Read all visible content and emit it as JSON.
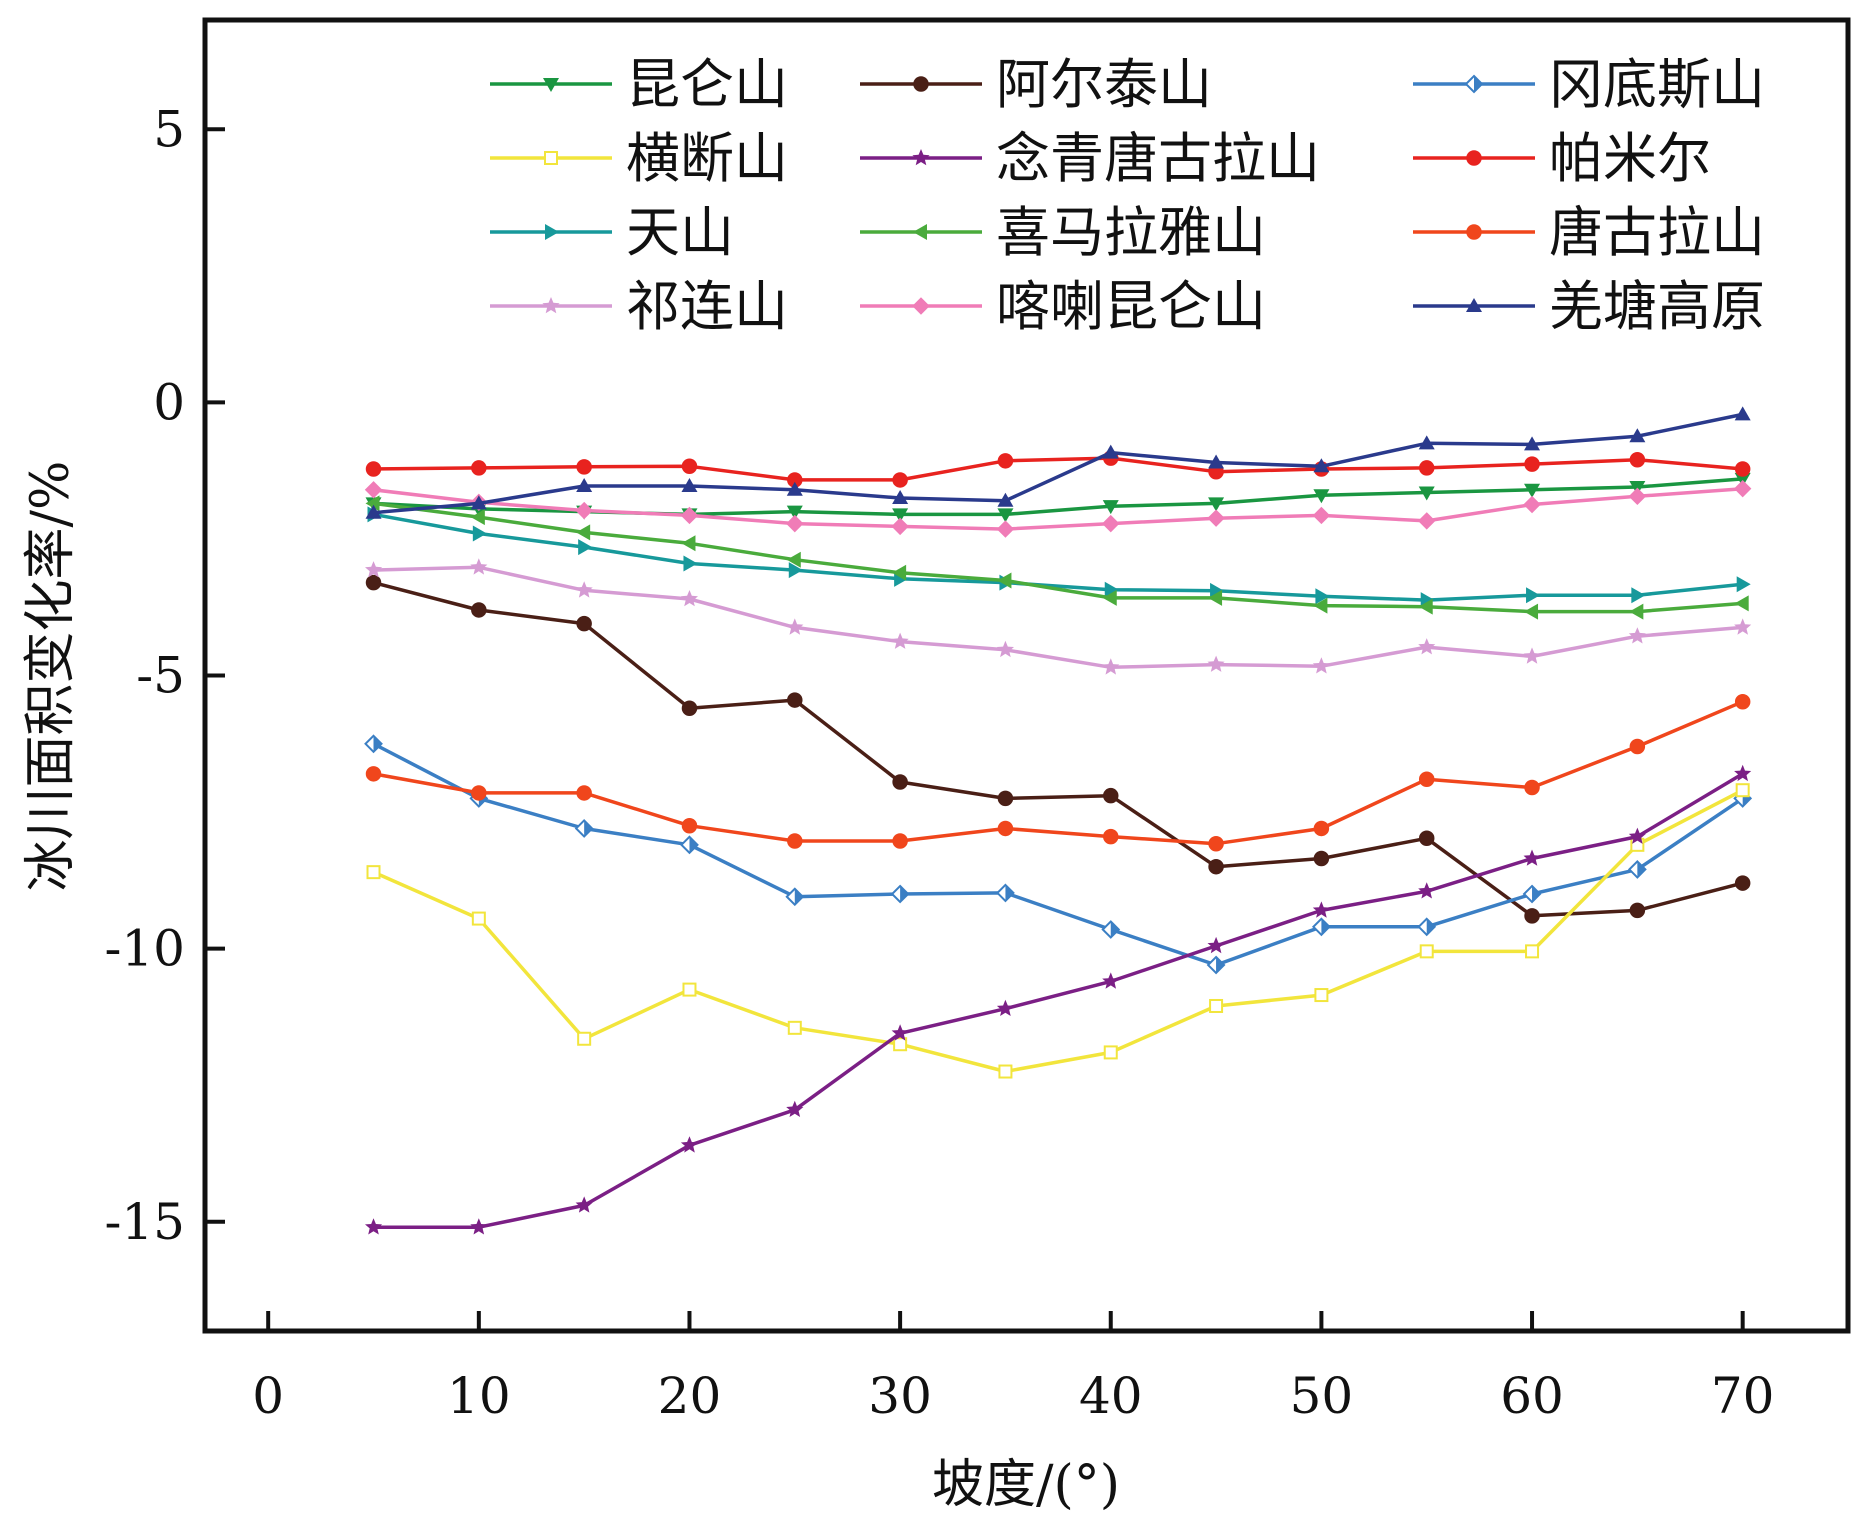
{
  "chart_data": {
    "type": "line",
    "xlabel": "坡度/(°)",
    "ylabel": "冰川面积变化率/%",
    "xlim": [
      -3,
      75
    ],
    "ylim": [
      -17,
      7
    ],
    "xticks": [
      0,
      10,
      20,
      30,
      40,
      50,
      60,
      70
    ],
    "yticks": [
      5,
      0,
      -5,
      -10,
      -15
    ],
    "xtick_labels": [
      "0",
      "10",
      "20",
      "30",
      "40",
      "50",
      "60",
      "70"
    ],
    "ytick_labels": [
      "5",
      "0",
      "-5",
      "-10",
      "-15"
    ],
    "grid": false,
    "legend_position": "top",
    "x": [
      5,
      10,
      15,
      20,
      25,
      30,
      35,
      40,
      45,
      50,
      55,
      60,
      65,
      70
    ],
    "series": [
      {
        "name": "昆仑山",
        "color": "#1a9641",
        "marker": "triangle-down",
        "values": [
          -1.85,
          -1.95,
          -2.0,
          -2.05,
          -2.0,
          -2.05,
          -2.05,
          -1.9,
          -1.85,
          -1.7,
          -1.65,
          -1.6,
          -1.55,
          -1.4
        ]
      },
      {
        "name": "阿尔泰山",
        "color": "#4a1f16",
        "marker": "circle",
        "values": [
          -3.3,
          -3.8,
          -4.05,
          -5.6,
          -5.45,
          -6.95,
          -7.25,
          -7.2,
          -8.5,
          -8.35,
          -7.98,
          -9.4,
          -9.3,
          -8.8
        ]
      },
      {
        "name": "冈底斯山",
        "color": "#3b7fc4",
        "marker": "half-diamond",
        "values": [
          -6.25,
          -7.25,
          -7.8,
          -8.1,
          -9.05,
          -9.0,
          -8.98,
          -9.65,
          -10.3,
          -9.6,
          -9.6,
          -9.0,
          -8.55,
          -7.25
        ]
      },
      {
        "name": "横断山",
        "color": "#f2e53c",
        "marker": "square",
        "values": [
          -8.6,
          -9.45,
          -11.65,
          -10.75,
          -11.45,
          -11.75,
          -12.25,
          -11.9,
          -11.05,
          -10.85,
          -10.05,
          -10.05,
          -8.1,
          -7.1
        ]
      },
      {
        "name": "念青唐古拉山",
        "color": "#7b1f85",
        "marker": "star",
        "values": [
          -15.1,
          -15.1,
          -14.7,
          -13.6,
          -12.95,
          -11.55,
          -11.1,
          -10.6,
          -9.95,
          -9.3,
          -8.95,
          -8.35,
          -7.95,
          -6.8
        ]
      },
      {
        "name": "帕米尔",
        "color": "#e8231f",
        "marker": "circle",
        "values": [
          -1.22,
          -1.2,
          -1.18,
          -1.17,
          -1.42,
          -1.42,
          -1.07,
          -1.02,
          -1.27,
          -1.22,
          -1.2,
          -1.13,
          -1.05,
          -1.22
        ]
      },
      {
        "name": "天山",
        "color": "#17999b",
        "marker": "triangle-right",
        "values": [
          -2.05,
          -2.4,
          -2.65,
          -2.95,
          -3.07,
          -3.23,
          -3.3,
          -3.43,
          -3.45,
          -3.55,
          -3.62,
          -3.53,
          -3.53,
          -3.33
        ]
      },
      {
        "name": "喜马拉雅山",
        "color": "#4aab3c",
        "marker": "triangle-left",
        "values": [
          -1.85,
          -2.1,
          -2.38,
          -2.58,
          -2.88,
          -3.12,
          -3.26,
          -3.58,
          -3.58,
          -3.72,
          -3.74,
          -3.83,
          -3.83,
          -3.68
        ]
      },
      {
        "name": "唐古拉山",
        "color": "#f0461c",
        "marker": "circle",
        "values": [
          -6.8,
          -7.15,
          -7.15,
          -7.75,
          -8.03,
          -8.03,
          -7.8,
          -7.95,
          -8.08,
          -7.8,
          -6.9,
          -7.05,
          -6.3,
          -5.48
        ]
      },
      {
        "name": "祁连山",
        "color": "#d59bd3",
        "marker": "star",
        "values": [
          -3.07,
          -3.02,
          -3.44,
          -3.6,
          -4.12,
          -4.38,
          -4.53,
          -4.85,
          -4.8,
          -4.83,
          -4.48,
          -4.65,
          -4.28,
          -4.12
        ]
      },
      {
        "name": "喀喇昆仑山",
        "color": "#f07cb7",
        "marker": "diamond",
        "values": [
          -1.6,
          -1.83,
          -1.98,
          -2.07,
          -2.22,
          -2.27,
          -2.32,
          -2.22,
          -2.12,
          -2.07,
          -2.17,
          -1.87,
          -1.72,
          -1.58
        ]
      },
      {
        "name": "羌塘高原",
        "color": "#2a3a8c",
        "marker": "triangle-up",
        "values": [
          -2.02,
          -1.85,
          -1.53,
          -1.53,
          -1.6,
          -1.75,
          -1.8,
          -0.92,
          -1.1,
          -1.17,
          -0.75,
          -0.77,
          -0.62,
          -0.22
        ]
      }
    ]
  }
}
